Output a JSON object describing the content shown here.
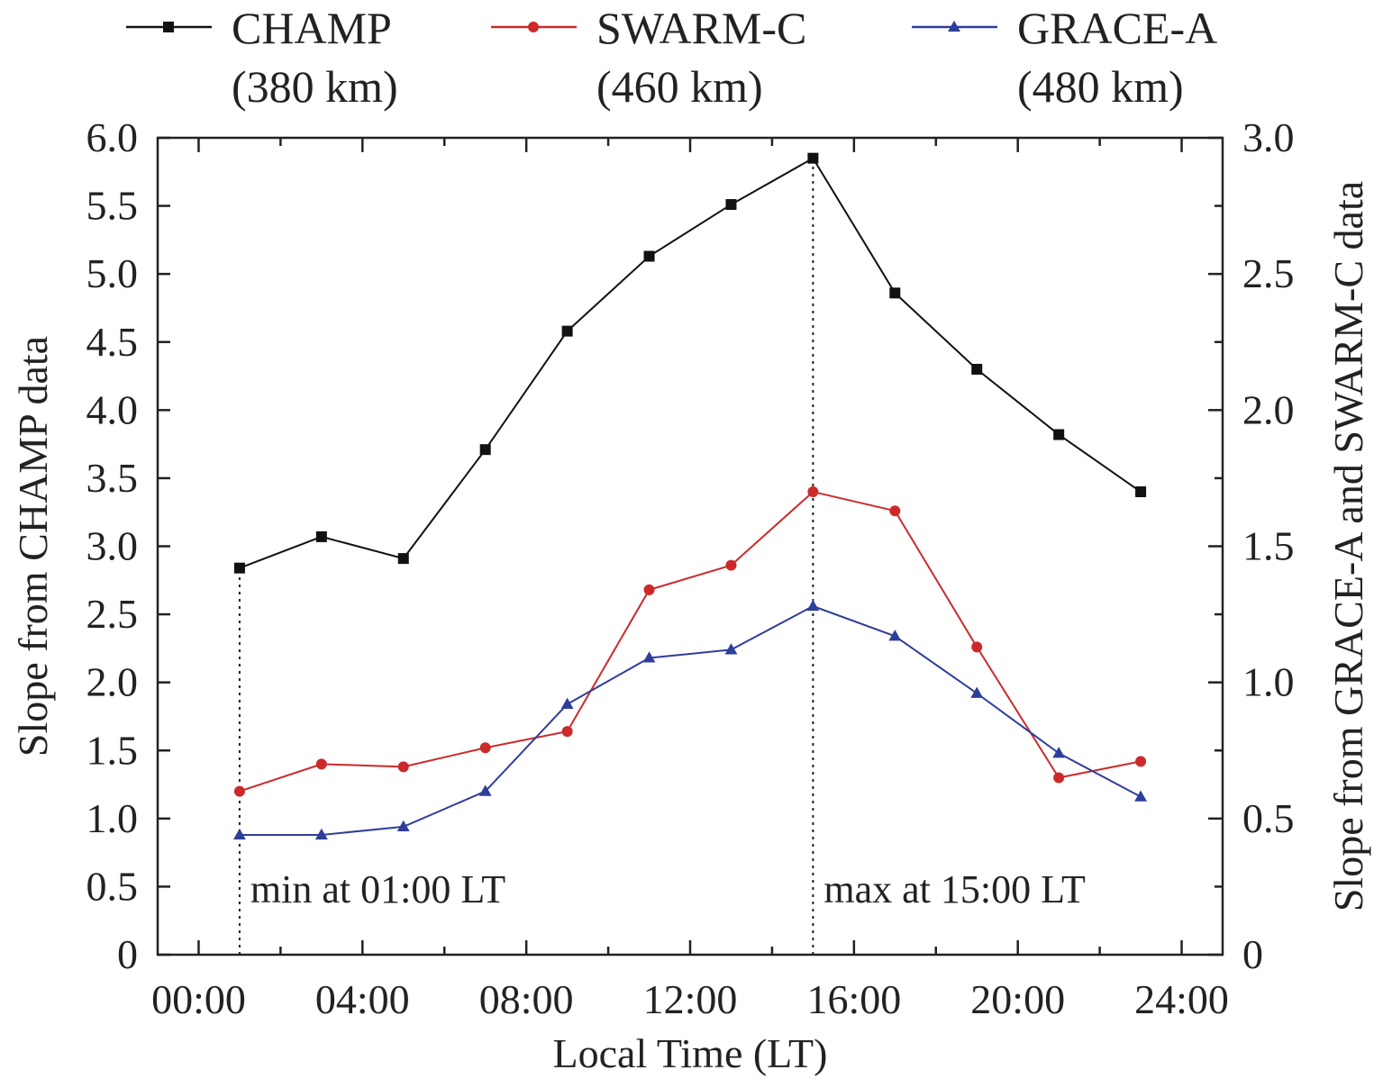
{
  "chart_data": {
    "type": "line",
    "x": [
      "01:00",
      "03:00",
      "05:00",
      "07:00",
      "09:00",
      "11:00",
      "13:00",
      "15:00",
      "17:00",
      "19:00",
      "21:00",
      "23:00"
    ],
    "x_hours": [
      1,
      3,
      5,
      7,
      9,
      11,
      13,
      15,
      17,
      19,
      21,
      23
    ],
    "xlabel": "Local Time (LT)",
    "ylabel_left": "Slope from CHAMP data",
    "ylabel_right": "Slope from GRACE-A and SWARM-C data",
    "xlim": [
      -1,
      25
    ],
    "ylim_left": [
      0,
      6.0
    ],
    "ylim_right": [
      0,
      3.0
    ],
    "x_ticks": [
      {
        "label": "00:00",
        "value": 0
      },
      {
        "label": "04:00",
        "value": 4
      },
      {
        "label": "08:00",
        "value": 8
      },
      {
        "label": "12:00",
        "value": 12
      },
      {
        "label": "16:00",
        "value": 16
      },
      {
        "label": "20:00",
        "value": 20
      },
      {
        "label": "24:00",
        "value": 24
      }
    ],
    "y_ticks_left": [
      {
        "label": "0",
        "value": 0
      },
      {
        "label": "0.5",
        "value": 0.5
      },
      {
        "label": "1.0",
        "value": 1.0
      },
      {
        "label": "1.5",
        "value": 1.5
      },
      {
        "label": "2.0",
        "value": 2.0
      },
      {
        "label": "2.5",
        "value": 2.5
      },
      {
        "label": "3.0",
        "value": 3.0
      },
      {
        "label": "3.5",
        "value": 3.5
      },
      {
        "label": "4.0",
        "value": 4.0
      },
      {
        "label": "4.5",
        "value": 4.5
      },
      {
        "label": "5.0",
        "value": 5.0
      },
      {
        "label": "5.5",
        "value": 5.5
      },
      {
        "label": "6.0",
        "value": 6.0
      }
    ],
    "y_ticks_right": [
      {
        "label": "0",
        "value": 0
      },
      {
        "label": "0.5",
        "value": 0.5
      },
      {
        "label": "1.0",
        "value": 1.0
      },
      {
        "label": "1.5",
        "value": 1.5
      },
      {
        "label": "2.0",
        "value": 2.0
      },
      {
        "label": "2.5",
        "value": 2.5
      },
      {
        "label": "3.0",
        "value": 3.0
      }
    ],
    "series": [
      {
        "name": "CHAMP",
        "name_line2": "(380 km)",
        "axis": "left",
        "color": "#111111",
        "marker": "square",
        "values": [
          2.84,
          3.07,
          2.91,
          3.71,
          4.58,
          5.13,
          5.51,
          5.85,
          4.86,
          4.3,
          3.82,
          3.4
        ]
      },
      {
        "name": "SWARM-C",
        "name_line2": "(460 km)",
        "axis": "right",
        "color": "#cc2a2a",
        "marker": "circle",
        "values": [
          0.6,
          0.7,
          0.69,
          0.76,
          0.82,
          1.34,
          1.43,
          1.7,
          1.63,
          1.13,
          0.65,
          0.71
        ]
      },
      {
        "name": "GRACE-A",
        "name_line2": "(480 km)",
        "axis": "right",
        "color": "#2e3e9a",
        "marker": "triangle",
        "values": [
          0.44,
          0.44,
          0.47,
          0.6,
          0.92,
          1.09,
          1.12,
          1.28,
          1.17,
          0.96,
          0.74,
          0.58
        ]
      }
    ],
    "annotations": [
      {
        "text": "min at 01:00 LT",
        "x_hour": 1,
        "value": 2.84
      },
      {
        "text": "max at 15:00 LT",
        "x_hour": 15,
        "value": 5.85
      }
    ],
    "legend_position": "top",
    "grid": false
  }
}
